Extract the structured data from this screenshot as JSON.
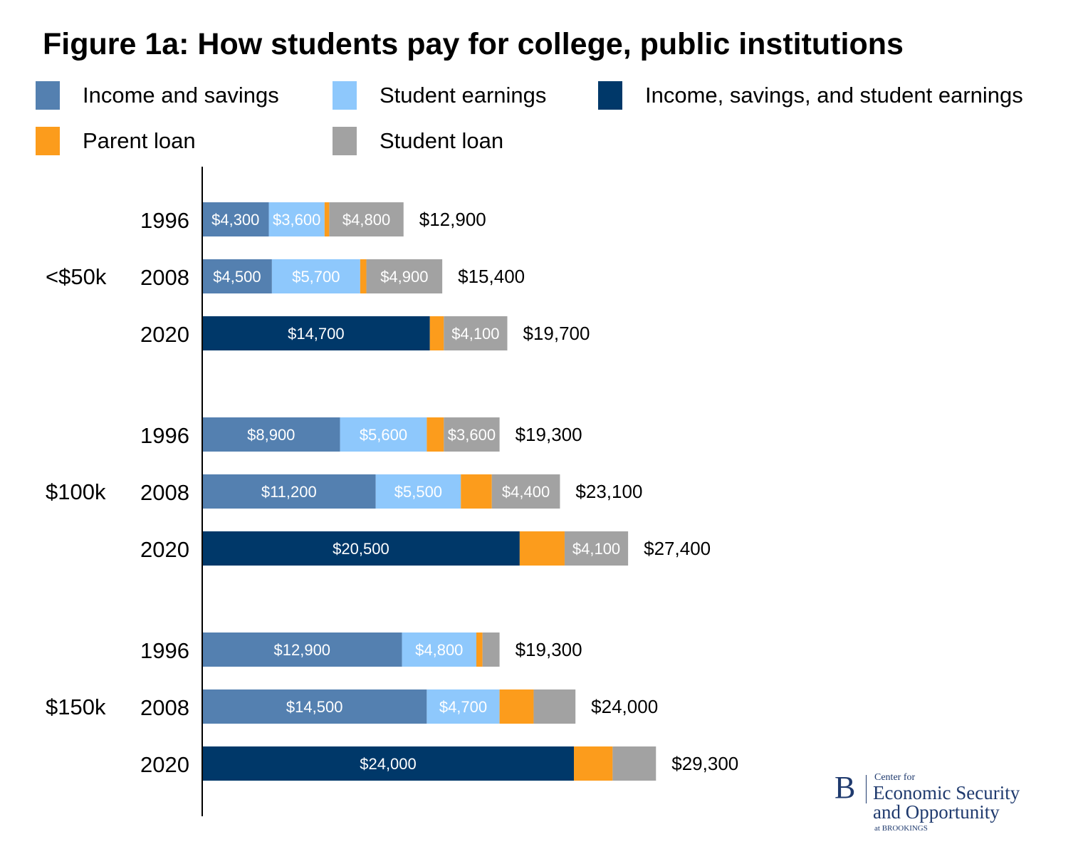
{
  "chart_data": {
    "type": "bar",
    "orientation": "horizontal",
    "stacked": true,
    "title": "Figure 1a: How students pay for college, public institutions",
    "series_names": [
      "Income and savings",
      "Student earnings",
      "Income, savings, and student earnings",
      "Parent loan",
      "Student loan"
    ],
    "colors": [
      "#5480b0",
      "#8ec8fc",
      "#003869",
      "#fc9c1c",
      "#a2a2a2"
    ],
    "legend_position": "top",
    "groups": [
      {
        "label": "<$50k",
        "bars": [
          {
            "year": "1996",
            "total_label": "$12,900",
            "segments": [
              {
                "series": "Income and savings",
                "value": 4300,
                "label": "$4,300"
              },
              {
                "series": "Student earnings",
                "value": 3600,
                "label": "$3,600"
              },
              {
                "series": "Parent loan",
                "value": 300,
                "label": ""
              },
              {
                "series": "Student loan",
                "value": 4800,
                "label": "$4,800"
              }
            ]
          },
          {
            "year": "2008",
            "total_label": "$15,400",
            "segments": [
              {
                "series": "Income and savings",
                "value": 4500,
                "label": "$4,500"
              },
              {
                "series": "Student earnings",
                "value": 5700,
                "label": "$5,700"
              },
              {
                "series": "Parent loan",
                "value": 400,
                "label": ""
              },
              {
                "series": "Student loan",
                "value": 4900,
                "label": "$4,900"
              }
            ]
          },
          {
            "year": "2020",
            "total_label": "$19,700",
            "segments": [
              {
                "series": "Income, savings, and student earnings",
                "value": 14700,
                "label": "$14,700"
              },
              {
                "series": "Parent loan",
                "value": 900,
                "label": ""
              },
              {
                "series": "Student loan",
                "value": 4100,
                "label": "$4,100"
              }
            ]
          }
        ]
      },
      {
        "label": "$100k",
        "bars": [
          {
            "year": "1996",
            "total_label": "$19,300",
            "segments": [
              {
                "series": "Income and savings",
                "value": 8900,
                "label": "$8,900"
              },
              {
                "series": "Student earnings",
                "value": 5600,
                "label": "$5,600"
              },
              {
                "series": "Parent loan",
                "value": 1100,
                "label": ""
              },
              {
                "series": "Student loan",
                "value": 3600,
                "label": "$3,600"
              }
            ]
          },
          {
            "year": "2008",
            "total_label": "$23,100",
            "segments": [
              {
                "series": "Income and savings",
                "value": 11200,
                "label": "$11,200"
              },
              {
                "series": "Student earnings",
                "value": 5500,
                "label": "$5,500"
              },
              {
                "series": "Parent loan",
                "value": 2000,
                "label": ""
              },
              {
                "series": "Student loan",
                "value": 4400,
                "label": "$4,400"
              }
            ]
          },
          {
            "year": "2020",
            "total_label": "$27,400",
            "segments": [
              {
                "series": "Income, savings, and student earnings",
                "value": 20500,
                "label": "$20,500"
              },
              {
                "series": "Parent loan",
                "value": 2900,
                "label": ""
              },
              {
                "series": "Student loan",
                "value": 4100,
                "label": "$4,100"
              }
            ]
          }
        ]
      },
      {
        "label": "$150k",
        "bars": [
          {
            "year": "1996",
            "total_label": "$19,300",
            "segments": [
              {
                "series": "Income and savings",
                "value": 12900,
                "label": "$12,900"
              },
              {
                "series": "Student earnings",
                "value": 4800,
                "label": "$4,800"
              },
              {
                "series": "Parent loan",
                "value": 400,
                "label": ""
              },
              {
                "series": "Student loan",
                "value": 1100,
                "label": ""
              }
            ]
          },
          {
            "year": "2008",
            "total_label": "$24,000",
            "segments": [
              {
                "series": "Income and savings",
                "value": 14500,
                "label": "$14,500"
              },
              {
                "series": "Student earnings",
                "value": 4700,
                "label": "$4,700"
              },
              {
                "series": "Parent loan",
                "value": 2200,
                "label": ""
              },
              {
                "series": "Student loan",
                "value": 2700,
                "label": ""
              }
            ]
          },
          {
            "year": "2020",
            "total_label": "$29,300",
            "segments": [
              {
                "series": "Income, savings, and student earnings",
                "value": 24000,
                "label": "$24,000"
              },
              {
                "series": "Parent loan",
                "value": 2500,
                "label": ""
              },
              {
                "series": "Student loan",
                "value": 2800,
                "label": ""
              }
            ]
          }
        ]
      }
    ],
    "xlim": [
      0,
      32000
    ],
    "grid": false
  },
  "logo": {
    "letter": "B",
    "line1": "Center for",
    "line2": "Economic Security",
    "line3": "and Opportunity",
    "line4": "at BROOKINGS"
  }
}
